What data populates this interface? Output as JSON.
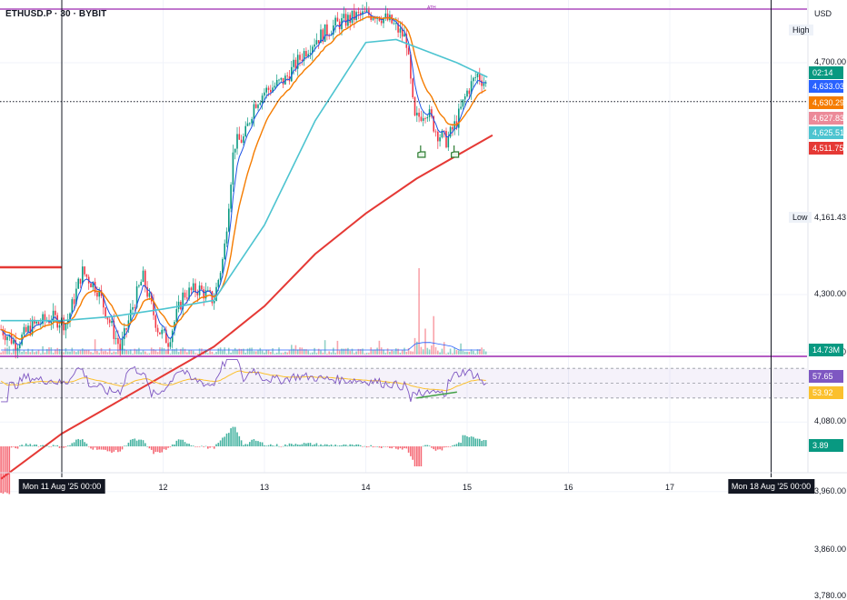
{
  "symbol_title": "ETHUSD.P · 30 · BYBIT",
  "currency": "USD",
  "ath_label": "ATH",
  "high_label": "High",
  "low_label": "Low",
  "low_value": "4,161.43",
  "colors": {
    "up": "#089981",
    "down": "#f23645",
    "ema_fast": "#1e53e5",
    "ema_mid": "#f57c00",
    "ema_slow": "#4dc4d0",
    "ema_long": "#e53935",
    "ath_line": "#9c27b0",
    "rsi": "#7e57c2",
    "rsi_ma": "#fbc02d",
    "hand_icon": "#2e7d32"
  },
  "price_badges": [
    {
      "value": "02:14",
      "color": "#089981"
    },
    {
      "value": "4,633.03",
      "color": "#2962ff"
    },
    {
      "value": "4,630.29",
      "color": "#f57c00"
    },
    {
      "value": "4,627.83",
      "color": "#ec8a99"
    },
    {
      "value": "4,625.51",
      "color": "#4dc4d0"
    },
    {
      "value": "4,511.75",
      "color": "#e53935"
    }
  ],
  "volume_badge": {
    "value": "14.73M",
    "color": "#089981"
  },
  "rsi_badges": [
    {
      "value": "57.65",
      "color": "#7e57c2"
    },
    {
      "value": "53.92",
      "color": "#fbc02d"
    }
  ],
  "macd_badge": {
    "value": "3.89",
    "color": "#089981"
  },
  "chart_data": {
    "type": "candlestick",
    "price_axis": {
      "ticks": [
        4700,
        4300,
        4200,
        4080,
        3960,
        3860,
        3780
      ],
      "tick_labels": [
        "4,700.00",
        "4,300.00",
        "4,200.00",
        "4,080.00",
        "3,960.00",
        "3,860.00",
        "3,780.00"
      ]
    },
    "time_axis": {
      "labels": [
        {
          "t": 0,
          "text": "Mon 11 Aug '25  00:00",
          "boxed": true
        },
        {
          "t": 1,
          "text": "12"
        },
        {
          "t": 2,
          "text": "13"
        },
        {
          "t": 3,
          "text": "14"
        },
        {
          "t": 4,
          "text": "15"
        },
        {
          "t": 5,
          "text": "16"
        },
        {
          "t": 6,
          "text": "17"
        },
        {
          "t": 7,
          "text": "Mon 18 Aug '25  00:00",
          "boxed": true
        }
      ]
    },
    "price_path": [
      [
        -0.6,
        4240
      ],
      [
        -0.45,
        4215
      ],
      [
        -0.3,
        4245
      ],
      [
        -0.1,
        4260
      ],
      [
        0.05,
        4250
      ],
      [
        0.2,
        4340
      ],
      [
        0.35,
        4310
      ],
      [
        0.5,
        4240
      ],
      [
        0.58,
        4205
      ],
      [
        0.7,
        4280
      ],
      [
        0.8,
        4330
      ],
      [
        0.95,
        4240
      ],
      [
        1.05,
        4220
      ],
      [
        1.2,
        4300
      ],
      [
        1.35,
        4310
      ],
      [
        1.5,
        4290
      ],
      [
        1.6,
        4370
      ],
      [
        1.7,
        4560
      ],
      [
        1.8,
        4570
      ],
      [
        1.9,
        4630
      ],
      [
        2.0,
        4650
      ],
      [
        2.2,
        4670
      ],
      [
        2.4,
        4720
      ],
      [
        2.5,
        4740
      ],
      [
        2.7,
        4765
      ],
      [
        2.9,
        4780
      ],
      [
        3.1,
        4785
      ],
      [
        3.25,
        4770
      ],
      [
        3.4,
        4740
      ],
      [
        3.48,
        4600
      ],
      [
        3.6,
        4620
      ],
      [
        3.7,
        4580
      ],
      [
        3.8,
        4565
      ],
      [
        3.9,
        4600
      ],
      [
        4.0,
        4650
      ],
      [
        4.1,
        4680
      ],
      [
        4.2,
        4660
      ]
    ],
    "ema_slow": [
      [
        -0.6,
        4255
      ],
      [
        0.0,
        4255
      ],
      [
        0.5,
        4262
      ],
      [
        1.0,
        4275
      ],
      [
        1.5,
        4290
      ],
      [
        2.0,
        4420
      ],
      [
        2.5,
        4600
      ],
      [
        3.0,
        4735
      ],
      [
        3.3,
        4740
      ],
      [
        3.6,
        4720
      ],
      [
        3.9,
        4700
      ],
      [
        4.2,
        4675
      ]
    ],
    "ema_long": [
      [
        -0.6,
        3982
      ],
      [
        0.0,
        4060
      ],
      [
        0.5,
        4110
      ],
      [
        1.0,
        4160
      ],
      [
        1.5,
        4210
      ],
      [
        2.0,
        4280
      ],
      [
        2.5,
        4370
      ],
      [
        3.0,
        4440
      ],
      [
        3.5,
        4500
      ],
      [
        4.0,
        4550
      ],
      [
        4.25,
        4575
      ]
    ],
    "ath_price": 4890,
    "volume_spike_t": 3.52,
    "rsi_bands": [
      70,
      50,
      30
    ],
    "rsi_divergence": {
      "from": [
        3.5,
        30
      ],
      "to": [
        3.9,
        38
      ]
    },
    "buy_signals_t": [
      3.55,
      3.88
    ]
  }
}
